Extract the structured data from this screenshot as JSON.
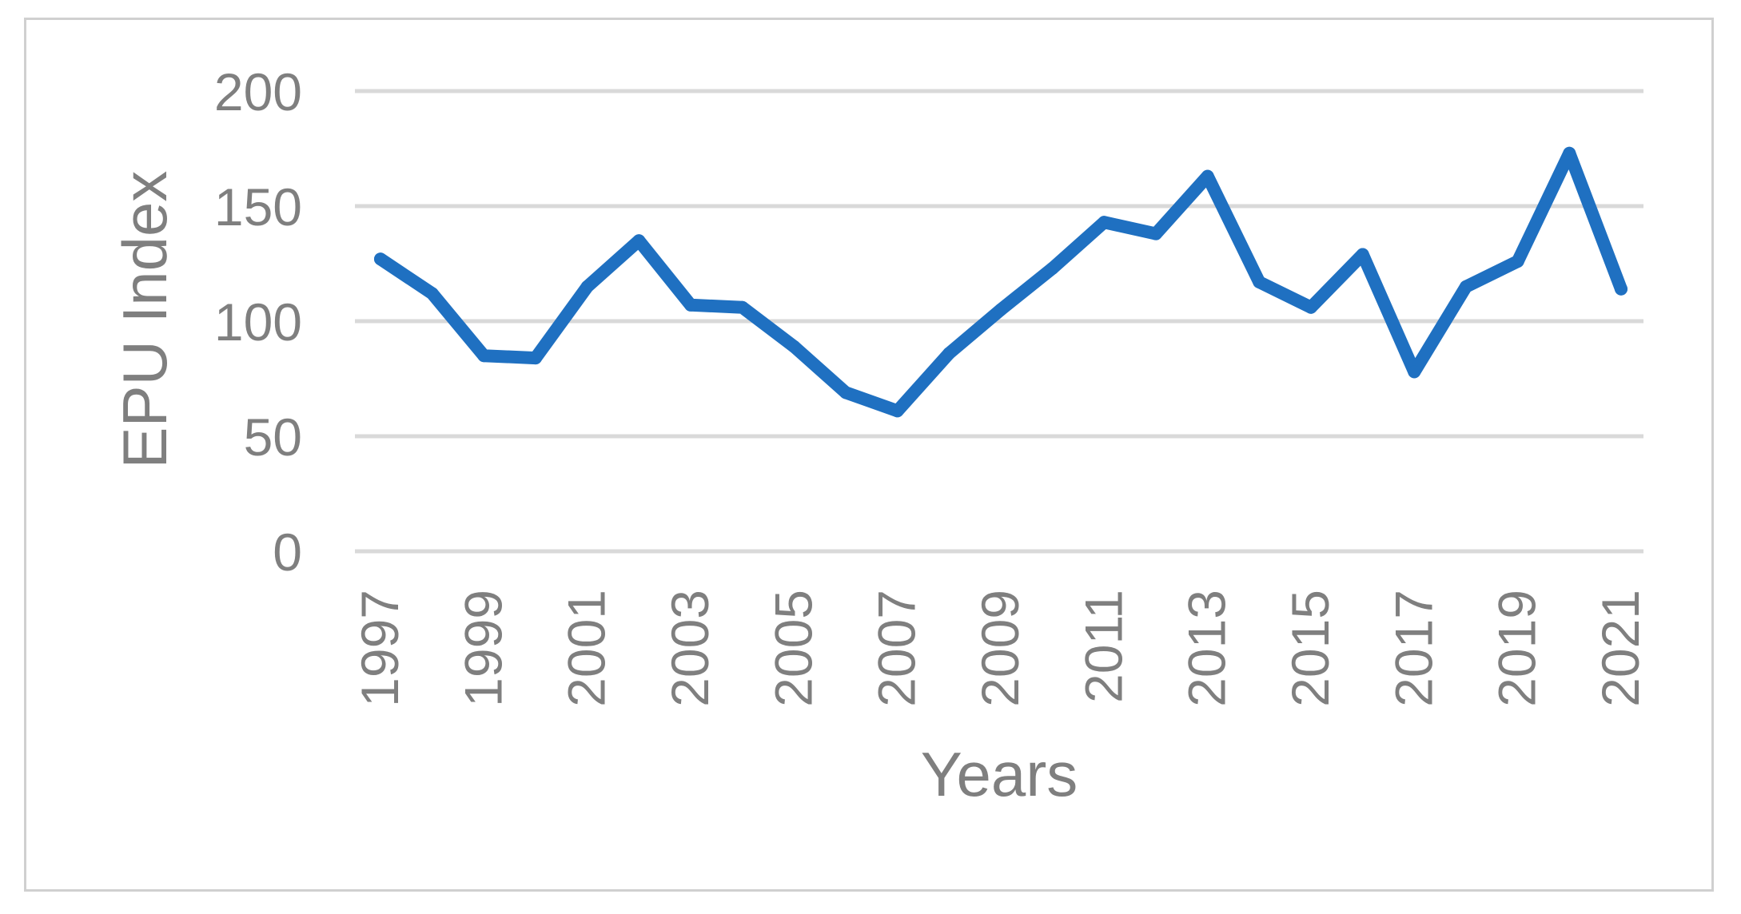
{
  "chart_data": {
    "type": "line",
    "title": "",
    "xlabel": "Years",
    "ylabel": "EPU Index",
    "ylim": [
      0,
      200
    ],
    "yticks": [
      0,
      50,
      100,
      150,
      200
    ],
    "x": [
      1997,
      1998,
      1999,
      2000,
      2001,
      2002,
      2003,
      2004,
      2005,
      2006,
      2007,
      2008,
      2009,
      2010,
      2011,
      2012,
      2013,
      2014,
      2015,
      2016,
      2017,
      2018,
      2019,
      2020,
      2021
    ],
    "xtick_labels": [
      "1997",
      "1999",
      "2001",
      "2003",
      "2005",
      "2007",
      "2009",
      "2011",
      "2013",
      "2015",
      "2017",
      "2019",
      "2021"
    ],
    "series": [
      {
        "values": [
          127,
          112,
          85,
          84,
          115,
          135,
          107,
          106,
          89,
          69,
          61,
          86,
          105,
          123,
          143,
          138,
          163,
          117,
          106,
          129,
          78,
          115,
          126,
          173,
          114
        ],
        "color": "#1f70c1"
      }
    ],
    "grid": true,
    "legend": "none"
  }
}
